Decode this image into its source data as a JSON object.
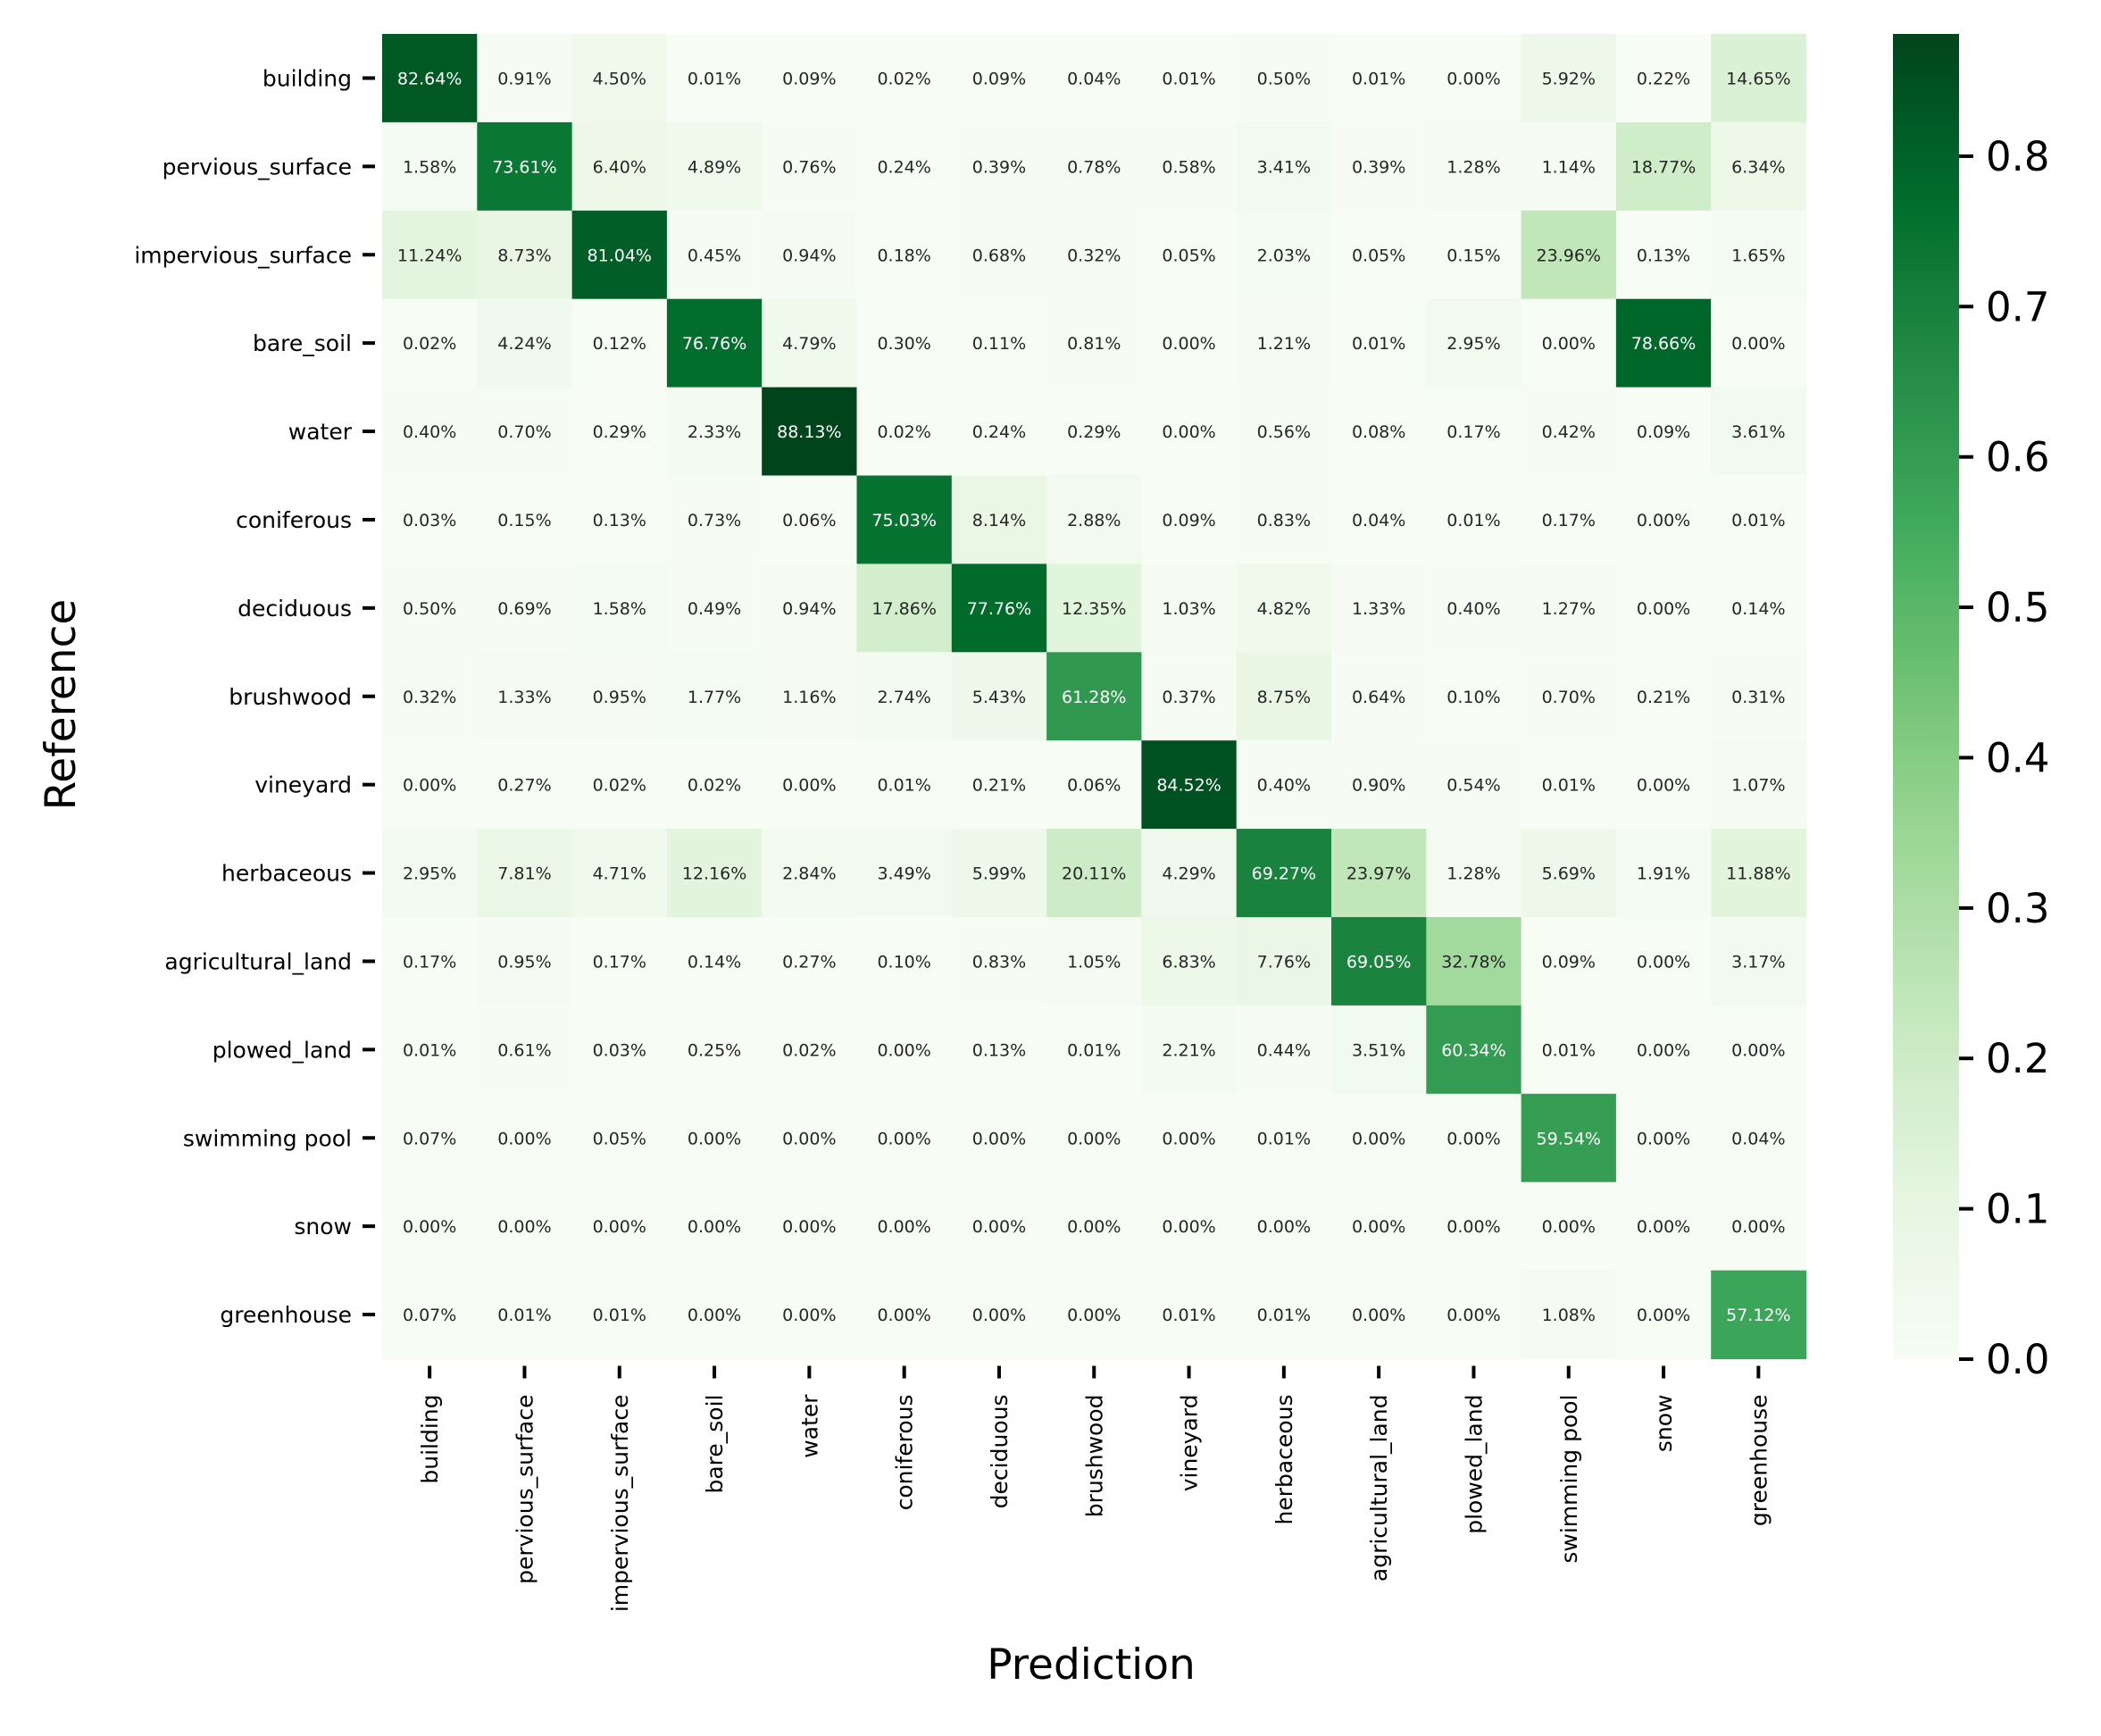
{
  "chart_data": {
    "type": "heatmap",
    "title": "",
    "xlabel": "Prediction",
    "ylabel": "Reference",
    "categories": [
      "building",
      "pervious_surface",
      "impervious_surface",
      "bare_soil",
      "water",
      "coniferous",
      "deciduous",
      "brushwood",
      "vineyard",
      "herbaceous",
      "agricultural_land",
      "plowed_land",
      "swimming pool",
      "snow",
      "greenhouse"
    ],
    "value_format": "percent",
    "colorbar": {
      "min": 0.0,
      "max": 0.8813,
      "ticks": [
        "0.0",
        "0.1",
        "0.2",
        "0.3",
        "0.4",
        "0.5",
        "0.6",
        "0.7",
        "0.8"
      ],
      "colormap": "Greens"
    },
    "grid": false,
    "values": [
      [
        0.8264,
        0.0091,
        0.045,
        0.0001,
        0.0009,
        0.0002,
        0.0009,
        0.0004,
        0.0001,
        0.005,
        0.0001,
        0.0,
        0.0592,
        0.0022,
        0.1465
      ],
      [
        0.0158,
        0.7361,
        0.064,
        0.0489,
        0.0076,
        0.0024,
        0.0039,
        0.0078,
        0.0058,
        0.0341,
        0.0039,
        0.0128,
        0.0114,
        0.1877,
        0.0634
      ],
      [
        0.1124,
        0.0873,
        0.8104,
        0.0045,
        0.0094,
        0.0018,
        0.0068,
        0.0032,
        0.0005,
        0.0203,
        0.0005,
        0.0015,
        0.2396,
        0.0013,
        0.0165
      ],
      [
        0.0002,
        0.0424,
        0.0012,
        0.7676,
        0.0479,
        0.003,
        0.0011,
        0.0081,
        0.0,
        0.0121,
        0.0001,
        0.0295,
        0.0,
        0.7866,
        0.0
      ],
      [
        0.004,
        0.007,
        0.0029,
        0.0233,
        0.8813,
        0.0002,
        0.0024,
        0.0029,
        0.0,
        0.0056,
        0.0008,
        0.0017,
        0.0042,
        0.0009,
        0.0361
      ],
      [
        0.0003,
        0.0015,
        0.0013,
        0.0073,
        0.0006,
        0.7503,
        0.0814,
        0.0288,
        0.0009,
        0.0083,
        0.0004,
        0.0001,
        0.0017,
        0.0,
        0.0001
      ],
      [
        0.005,
        0.0069,
        0.0158,
        0.0049,
        0.0094,
        0.1786,
        0.7776,
        0.1235,
        0.0103,
        0.0482,
        0.0133,
        0.004,
        0.0127,
        0.0,
        0.0014
      ],
      [
        0.0032,
        0.0133,
        0.0095,
        0.0177,
        0.0116,
        0.0274,
        0.0543,
        0.6128,
        0.0037,
        0.0875,
        0.0064,
        0.001,
        0.007,
        0.0021,
        0.0031
      ],
      [
        0.0,
        0.0027,
        0.0002,
        0.0002,
        0.0,
        0.0001,
        0.0021,
        0.0006,
        0.8452,
        0.004,
        0.009,
        0.0054,
        0.0001,
        0.0,
        0.0107
      ],
      [
        0.0295,
        0.0781,
        0.0471,
        0.1216,
        0.0284,
        0.0349,
        0.0599,
        0.2011,
        0.0429,
        0.6927,
        0.2397,
        0.0128,
        0.0569,
        0.0191,
        0.1188
      ],
      [
        0.0017,
        0.0095,
        0.0017,
        0.0014,
        0.0027,
        0.001,
        0.0083,
        0.0105,
        0.0683,
        0.0776,
        0.6905,
        0.3278,
        0.0009,
        0.0,
        0.0317
      ],
      [
        0.0001,
        0.0061,
        0.0003,
        0.0025,
        0.0002,
        0.0,
        0.0013,
        0.0001,
        0.0221,
        0.0044,
        0.0351,
        0.6034,
        0.0001,
        0.0,
        0.0
      ],
      [
        0.0007,
        0.0,
        0.0005,
        0.0,
        0.0,
        0.0,
        0.0,
        0.0,
        0.0,
        0.0001,
        0.0,
        0.0,
        0.5954,
        0.0,
        0.0004
      ],
      [
        0.0,
        0.0,
        0.0,
        0.0,
        0.0,
        0.0,
        0.0,
        0.0,
        0.0,
        0.0,
        0.0,
        0.0,
        0.0,
        0.0,
        0.0
      ],
      [
        0.0007,
        0.0001,
        0.0001,
        0.0,
        0.0,
        0.0,
        0.0,
        0.0,
        0.0001,
        0.0001,
        0.0,
        0.0,
        0.0108,
        0.0,
        0.5712
      ]
    ]
  }
}
